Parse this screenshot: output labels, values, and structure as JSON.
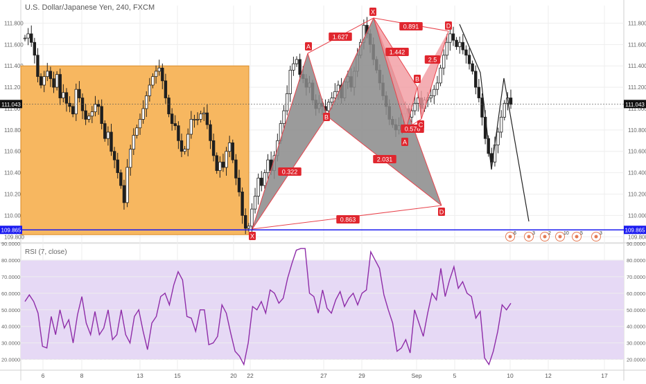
{
  "symbol_title": "U.S. Dollar/Japanese Yen, 240, FXCM",
  "rsi_title": "RSI (7, close)",
  "colors": {
    "bg": "#ffffff",
    "grid": "#eeeeee",
    "candle": "#1f1f1f",
    "box_fill": "#f7b760",
    "box_edge": "#d98b2a",
    "harmonic_gray": "#8a8a8a",
    "harmonic_pink": "#f19aa0",
    "pattern_line": "#e8424b",
    "label_bg": "#e0262e",
    "horizontal_line": "#1a1af0",
    "rsi_band": "#e6d9f5",
    "rsi_line": "#8e2ca8",
    "price_badge": "#111111"
  },
  "chart_data": [
    {
      "type": "candlestick",
      "title": "U.S. Dollar/Japanese Yen, 240, FXCM",
      "x_ticks": [
        "6",
        "8",
        "13",
        "15",
        "20",
        "22",
        "27",
        "29",
        "Sep",
        "5",
        "10",
        "12",
        "17"
      ],
      "y_ticks": [
        "111.800",
        "111.600",
        "111.400",
        "111.200",
        "111.000",
        "110.800",
        "110.600",
        "110.400",
        "110.200",
        "110.000",
        "109.800"
      ],
      "ylim": [
        109.75,
        111.9
      ],
      "current_price": "111.043",
      "horizontal_line_price": "109.865",
      "close_series": [
        111.66,
        111.7,
        111.62,
        111.5,
        111.3,
        111.22,
        111.3,
        111.35,
        111.28,
        111.2,
        111.32,
        111.1,
        111.15,
        111.05,
        111.02,
        110.95,
        111.18,
        111.1,
        110.98,
        110.9,
        110.93,
        110.97,
        111.04,
        111.02,
        110.86,
        110.72,
        110.78,
        110.6,
        110.52,
        110.4,
        110.28,
        110.12,
        110.45,
        110.62,
        110.75,
        110.82,
        110.9,
        111.0,
        111.12,
        111.22,
        111.3,
        111.35,
        111.38,
        111.26,
        111.1,
        110.95,
        110.86,
        110.84,
        110.7,
        110.6,
        110.62,
        110.76,
        110.9,
        110.9,
        110.9,
        110.95,
        110.96,
        110.85,
        110.7,
        110.56,
        110.42,
        110.5,
        110.45,
        110.6,
        110.68,
        110.52,
        110.35,
        110.22,
        110.0,
        109.88,
        109.9,
        110.06,
        110.18,
        110.35,
        110.28,
        110.4,
        110.52,
        110.42,
        110.56,
        110.7,
        110.86,
        110.98,
        111.14,
        111.36,
        111.42,
        111.46,
        111.32,
        111.28,
        111.2,
        111.24,
        111.08,
        111.0,
        111.05,
        111.02,
        110.98,
        111.06,
        111.1,
        111.16,
        111.22,
        111.1,
        111.25,
        111.3,
        111.2,
        111.35,
        111.5,
        111.62,
        111.78,
        111.7,
        111.6,
        111.46,
        111.36,
        111.24,
        111.12,
        111.02,
        110.9,
        110.85,
        110.8,
        110.84,
        110.95,
        111.0,
        110.92,
        110.98,
        111.05,
        111.1,
        111.0,
        111.08,
        111.1,
        111.12,
        111.18,
        111.24,
        111.38,
        111.5,
        111.62,
        111.7,
        111.64,
        111.58,
        111.62,
        111.55,
        111.5,
        111.42,
        111.35,
        111.2,
        111.1,
        110.92,
        110.72,
        110.58,
        110.5,
        110.66,
        110.78,
        110.92,
        111.05,
        111.1,
        111.04
      ],
      "harmonic_patterns": [
        {
          "points": [
            "X",
            "A",
            "B",
            "C",
            "D"
          ],
          "ratios": [
            "1.627",
            "0.322",
            "2.031",
            "0.863"
          ],
          "fill": "gray"
        },
        {
          "points": [
            "X",
            "A",
            "B",
            "C",
            "D"
          ],
          "ratios": [
            "0.891",
            "1.442",
            "2.5",
            "0.576"
          ],
          "fill": "pink"
        }
      ],
      "pattern_labels": [
        "X",
        "A",
        "B",
        "C",
        "D",
        "X",
        "D",
        "A",
        "B",
        "C"
      ],
      "highlight_box": {
        "from_price": 111.4,
        "to_price": 109.82,
        "color": "orange"
      },
      "event_markers": [
        "6",
        "3",
        "2",
        "10",
        "5",
        "3"
      ]
    },
    {
      "type": "line",
      "title": "RSI (7, close)",
      "y_ticks": [
        "90.0000",
        "80.0000",
        "70.0000",
        "60.0000",
        "50.0000",
        "40.0000",
        "30.0000",
        "20.0000"
      ],
      "ylim": [
        14,
        90
      ],
      "band": [
        20,
        80
      ],
      "values": [
        55,
        59,
        55,
        48,
        28,
        27,
        46,
        35,
        50,
        39,
        44,
        30,
        47,
        58,
        42,
        35,
        49,
        35,
        39,
        50,
        32,
        35,
        50,
        35,
        30,
        46,
        50,
        37,
        26,
        42,
        46,
        58,
        60,
        53,
        65,
        73,
        68,
        46,
        45,
        37,
        50,
        50,
        29,
        30,
        34,
        53,
        48,
        36,
        25,
        22,
        17,
        30,
        52,
        50,
        55,
        48,
        62,
        60,
        54,
        57,
        69,
        78,
        86,
        87,
        87,
        60,
        58,
        48,
        62,
        51,
        48,
        56,
        61,
        52,
        57,
        60,
        53,
        60,
        62,
        85,
        80,
        75,
        59,
        50,
        42,
        25,
        27,
        32,
        24,
        50,
        42,
        34,
        48,
        60,
        56,
        75,
        58,
        68,
        76,
        63,
        67,
        60,
        58,
        45,
        49,
        21,
        17,
        25,
        37,
        53,
        50,
        54
      ]
    }
  ]
}
